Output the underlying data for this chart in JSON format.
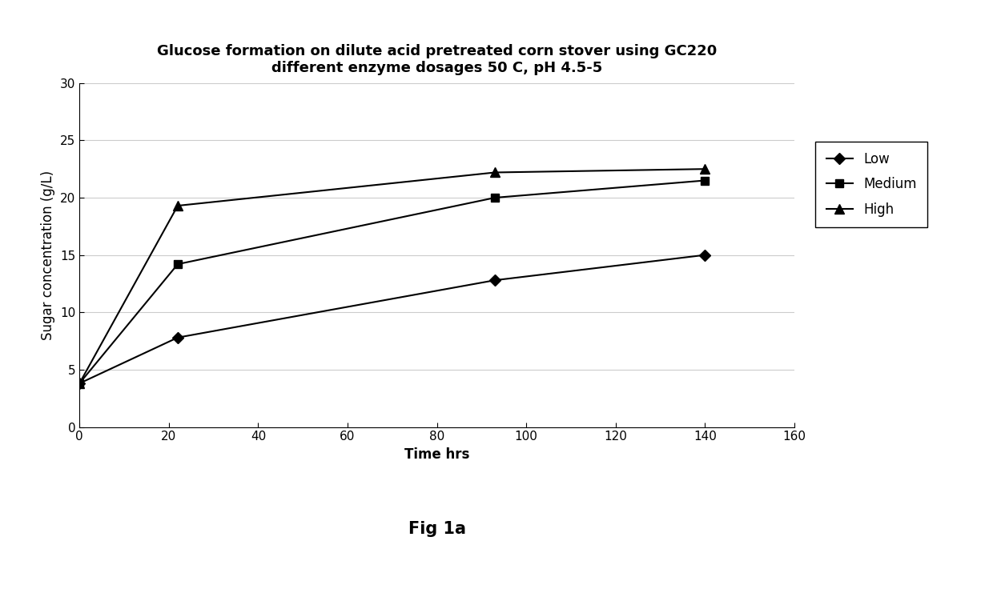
{
  "title_line1": "Glucose formation on dilute acid pretreated corn stover using GC220",
  "title_line2": "different enzyme dosages 50 C, pH 4.5-5",
  "xlabel": "Time hrs",
  "ylabel": "Sugar concentration (g/L)",
  "caption": "Fig 1a",
  "xlim": [
    0,
    160
  ],
  "ylim": [
    0,
    30
  ],
  "xticks": [
    0,
    20,
    40,
    60,
    80,
    100,
    120,
    140,
    160
  ],
  "yticks": [
    0,
    5,
    10,
    15,
    20,
    25,
    30
  ],
  "series": [
    {
      "label": "Low",
      "x": [
        0,
        22,
        93,
        140
      ],
      "y": [
        3.8,
        7.8,
        12.8,
        15.0
      ],
      "color": "#000000",
      "marker": "D",
      "linewidth": 1.5,
      "markersize": 7
    },
    {
      "label": "Medium",
      "x": [
        0,
        22,
        93,
        140
      ],
      "y": [
        3.8,
        14.2,
        20.0,
        21.5
      ],
      "color": "#000000",
      "marker": "s",
      "linewidth": 1.5,
      "markersize": 7
    },
    {
      "label": "High",
      "x": [
        0,
        22,
        93,
        140
      ],
      "y": [
        3.8,
        19.3,
        22.2,
        22.5
      ],
      "color": "#000000",
      "marker": "^",
      "linewidth": 1.5,
      "markersize": 8
    }
  ],
  "background_color": "#ffffff",
  "grid_color": "#cccccc",
  "title_fontsize": 13,
  "axis_label_fontsize": 12,
  "tick_fontsize": 11,
  "legend_fontsize": 12,
  "caption_fontsize": 15
}
